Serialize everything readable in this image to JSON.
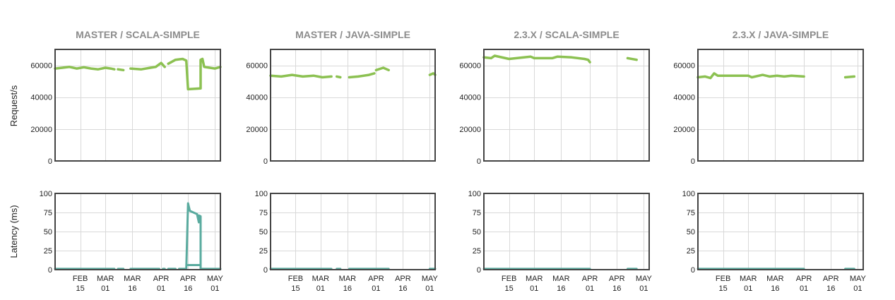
{
  "y_axis_labels": {
    "throughput": "Request/s",
    "latency": "Latency (ms)"
  },
  "colors": {
    "throughput": "#8cc152",
    "latency": "#5aab9f",
    "grid": "#d9d9d9",
    "frame": "#444444",
    "title": "#8c8c8c"
  },
  "x_ticks": [
    "2017-02-15",
    "2017-03-01",
    "2017-03-16",
    "2017-04-01",
    "2017-04-16",
    "2017-05-01"
  ],
  "x_tick_labels": [
    [
      "FEB",
      "15"
    ],
    [
      "MAR",
      "01"
    ],
    [
      "MAR",
      "16"
    ],
    [
      "APR",
      "01"
    ],
    [
      "APR",
      "16"
    ],
    [
      "MAY",
      "01"
    ]
  ],
  "chart_data": [
    {
      "type": "line",
      "title": "MASTER / SCALA-SIMPLE",
      "ylabel": "Request/s",
      "xlim": [
        "2017-02-01",
        "2017-05-04"
      ],
      "ylim": [
        0,
        70000
      ],
      "yticks": [
        0,
        20000,
        40000,
        60000
      ],
      "grid": true,
      "series": [
        {
          "color": "#8cc152",
          "segments": [
            [
              [
                "2017-02-01",
                58000
              ],
              [
                "2017-02-05",
                58500
              ],
              [
                "2017-02-09",
                59000
              ],
              [
                "2017-02-13",
                58000
              ],
              [
                "2017-02-17",
                58800
              ],
              [
                "2017-02-21",
                58000
              ],
              [
                "2017-02-25",
                57500
              ],
              [
                "2017-03-01",
                58500
              ],
              [
                "2017-03-04",
                58000
              ],
              [
                "2017-03-06",
                57500
              ]
            ],
            [
              [
                "2017-03-08",
                57500
              ],
              [
                "2017-03-11",
                57000
              ]
            ],
            [
              [
                "2017-03-15",
                58000
              ],
              [
                "2017-03-21",
                57500
              ],
              [
                "2017-03-26",
                58500
              ],
              [
                "2017-03-29",
                59000
              ],
              [
                "2017-04-01",
                61500
              ],
              [
                "2017-04-03",
                59000
              ]
            ],
            [
              [
                "2017-04-05",
                61000
              ],
              [
                "2017-04-09",
                63500
              ],
              [
                "2017-04-13",
                64000
              ],
              [
                "2017-04-15",
                63000
              ],
              [
                "2017-04-16",
                45000
              ],
              [
                "2017-04-23",
                45500
              ],
              [
                "2017-04-23",
                63500
              ],
              [
                "2017-04-24",
                64000
              ],
              [
                "2017-04-25",
                59000
              ],
              [
                "2017-05-01",
                58000
              ],
              [
                "2017-05-04",
                59000
              ]
            ]
          ]
        }
      ]
    },
    {
      "type": "line",
      "title": "MASTER / JAVA-SIMPLE",
      "ylabel": "",
      "xlim": [
        "2017-02-01",
        "2017-05-04"
      ],
      "ylim": [
        0,
        70000
      ],
      "yticks": [
        0,
        20000,
        40000,
        60000
      ],
      "grid": true,
      "series": [
        {
          "color": "#8cc152",
          "segments": [
            [
              [
                "2017-02-01",
                53500
              ],
              [
                "2017-02-07",
                53000
              ],
              [
                "2017-02-13",
                54000
              ],
              [
                "2017-02-19",
                53000
              ],
              [
                "2017-02-25",
                53500
              ],
              [
                "2017-03-02",
                52500
              ],
              [
                "2017-03-07",
                53000
              ]
            ],
            [
              [
                "2017-03-10",
                53000
              ],
              [
                "2017-03-12",
                52500
              ]
            ],
            [
              [
                "2017-03-17",
                52500
              ],
              [
                "2017-03-22",
                53000
              ],
              [
                "2017-03-28",
                54000
              ],
              [
                "2017-03-31",
                55000
              ]
            ],
            [
              [
                "2017-04-01",
                57000
              ],
              [
                "2017-04-05",
                58500
              ],
              [
                "2017-04-08",
                57000
              ]
            ],
            [
              [
                "2017-05-01",
                54000
              ],
              [
                "2017-05-03",
                55000
              ],
              [
                "2017-05-04",
                54000
              ]
            ]
          ]
        }
      ]
    },
    {
      "type": "line",
      "title": "2.3.X / SCALA-SIMPLE",
      "ylabel": "",
      "xlim": [
        "2017-02-01",
        "2017-05-04"
      ],
      "ylim": [
        0,
        70000
      ],
      "yticks": [
        0,
        20000,
        40000,
        60000
      ],
      "grid": true,
      "series": [
        {
          "color": "#8cc152",
          "segments": [
            [
              [
                "2017-02-01",
                65000
              ],
              [
                "2017-02-05",
                64500
              ],
              [
                "2017-02-07",
                66000
              ],
              [
                "2017-02-15",
                64000
              ],
              [
                "2017-02-27",
                65500
              ],
              [
                "2017-03-01",
                64500
              ],
              [
                "2017-03-11",
                64500
              ],
              [
                "2017-03-14",
                65500
              ],
              [
                "2017-03-22",
                65000
              ],
              [
                "2017-03-29",
                64000
              ],
              [
                "2017-03-31",
                63500
              ],
              [
                "2017-04-01",
                62000
              ]
            ],
            [
              [
                "2017-04-22",
                64500
              ],
              [
                "2017-04-27",
                63500
              ]
            ]
          ]
        }
      ]
    },
    {
      "type": "line",
      "title": "2.3.X / JAVA-SIMPLE",
      "ylabel": "",
      "xlim": [
        "2017-02-01",
        "2017-05-04"
      ],
      "ylim": [
        0,
        70000
      ],
      "yticks": [
        0,
        20000,
        40000,
        60000
      ],
      "grid": true,
      "series": [
        {
          "color": "#8cc152",
          "segments": [
            [
              [
                "2017-02-01",
                52500
              ],
              [
                "2017-02-05",
                53000
              ],
              [
                "2017-02-08",
                52000
              ],
              [
                "2017-02-10",
                55000
              ],
              [
                "2017-02-12",
                53500
              ],
              [
                "2017-03-01",
                53500
              ],
              [
                "2017-03-03",
                52500
              ],
              [
                "2017-03-09",
                54000
              ],
              [
                "2017-03-13",
                53000
              ],
              [
                "2017-03-17",
                53500
              ],
              [
                "2017-03-21",
                53000
              ],
              [
                "2017-03-25",
                53500
              ],
              [
                "2017-04-01",
                53000
              ]
            ],
            [
              [
                "2017-04-24",
                52500
              ],
              [
                "2017-04-29",
                53000
              ]
            ]
          ]
        }
      ]
    },
    {
      "type": "line",
      "title": "",
      "ylabel": "Latency (ms)",
      "xlim": [
        "2017-02-01",
        "2017-05-04"
      ],
      "ylim": [
        0,
        100
      ],
      "yticks": [
        0,
        25,
        50,
        75,
        100
      ],
      "grid": true,
      "series": [
        {
          "color": "#5aab9f",
          "segments": [
            [
              [
                "2017-02-01",
                1
              ],
              [
                "2017-03-06",
                1
              ]
            ],
            [
              [
                "2017-03-08",
                1
              ],
              [
                "2017-03-11",
                1
              ]
            ],
            [
              [
                "2017-03-15",
                1
              ],
              [
                "2017-03-31",
                1
              ]
            ],
            [
              [
                "2017-04-02",
                1
              ],
              [
                "2017-04-03",
                1
              ]
            ],
            [
              [
                "2017-04-05",
                1
              ],
              [
                "2017-04-09",
                1
              ]
            ],
            [
              [
                "2017-04-11",
                1
              ],
              [
                "2017-04-15",
                1
              ],
              [
                "2017-04-16",
                87
              ],
              [
                "2017-04-17",
                77
              ],
              [
                "2017-04-21",
                73
              ],
              [
                "2017-04-22",
                62
              ],
              [
                "2017-04-22",
                71
              ],
              [
                "2017-04-23",
                70
              ],
              [
                "2017-04-23",
                1
              ],
              [
                "2017-05-04",
                1
              ]
            ],
            [
              [
                "2017-04-16",
                6
              ],
              [
                "2017-04-23",
                6
              ]
            ]
          ]
        }
      ]
    },
    {
      "type": "line",
      "title": "",
      "ylabel": "",
      "xlim": [
        "2017-02-01",
        "2017-05-04"
      ],
      "ylim": [
        0,
        100
      ],
      "yticks": [
        0,
        25,
        50,
        75,
        100
      ],
      "grid": true,
      "series": [
        {
          "color": "#5aab9f",
          "segments": [
            [
              [
                "2017-02-01",
                1
              ],
              [
                "2017-03-07",
                1
              ]
            ],
            [
              [
                "2017-03-10",
                1
              ],
              [
                "2017-03-12",
                1
              ]
            ],
            [
              [
                "2017-03-17",
                1
              ],
              [
                "2017-04-08",
                1
              ]
            ],
            [
              [
                "2017-05-01",
                1
              ],
              [
                "2017-05-04",
                1
              ]
            ]
          ]
        }
      ]
    },
    {
      "type": "line",
      "title": "",
      "ylabel": "",
      "xlim": [
        "2017-02-01",
        "2017-05-04"
      ],
      "ylim": [
        0,
        100
      ],
      "yticks": [
        0,
        25,
        50,
        75,
        100
      ],
      "grid": true,
      "series": [
        {
          "color": "#5aab9f",
          "segments": [
            [
              [
                "2017-02-01",
                1
              ],
              [
                "2017-04-01",
                1
              ]
            ],
            [
              [
                "2017-04-22",
                1
              ],
              [
                "2017-04-27",
                1
              ]
            ]
          ]
        }
      ]
    },
    {
      "type": "line",
      "title": "",
      "ylabel": "",
      "xlim": [
        "2017-02-01",
        "2017-05-04"
      ],
      "ylim": [
        0,
        100
      ],
      "yticks": [
        0,
        25,
        50,
        75,
        100
      ],
      "grid": true,
      "series": [
        {
          "color": "#5aab9f",
          "segments": [
            [
              [
                "2017-02-01",
                1
              ],
              [
                "2017-04-01",
                1
              ]
            ],
            [
              [
                "2017-04-24",
                1
              ],
              [
                "2017-04-29",
                1
              ]
            ]
          ]
        }
      ]
    }
  ]
}
